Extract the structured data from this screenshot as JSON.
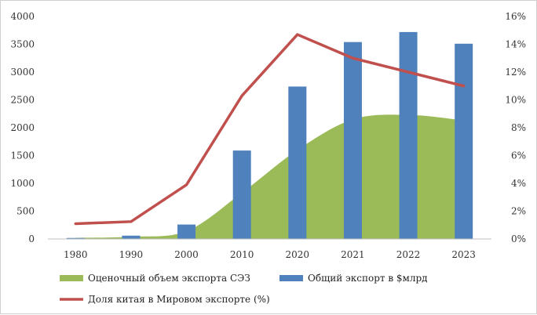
{
  "chart_data": {
    "type": "bar",
    "title": "",
    "xlabel": "",
    "ylabel": "",
    "categories": [
      "1980",
      "1990",
      "2000",
      "2010",
      "2020",
      "2021",
      "2022",
      "2023"
    ],
    "ylim": [
      0,
      4000
    ],
    "yticks": [
      "0",
      "500",
      "1000",
      "1500",
      "2000",
      "2500",
      "3000",
      "3500",
      "4000"
    ],
    "y2lim": [
      0,
      16
    ],
    "y2ticks": [
      "0%",
      "2%",
      "4%",
      "6%",
      "8%",
      "10%",
      "12%",
      "14%",
      "16%"
    ],
    "grid": false,
    "legend_position": "bottom",
    "series": [
      {
        "name": "Оценочный объем экспорта СЭЗ",
        "kind": "area",
        "axis": "left",
        "color": "#9bbb59",
        "values": [
          20,
          40,
          140,
          830,
          1600,
          2150,
          2230,
          2130
        ]
      },
      {
        "name": "Общий экспорт в $млрд",
        "kind": "bar",
        "axis": "left",
        "color": "#4f81bd",
        "values": [
          18,
          60,
          260,
          1590,
          2740,
          3540,
          3720,
          3510
        ]
      },
      {
        "name": "Доля китая в Мировом экспорте (%)",
        "kind": "line",
        "axis": "right",
        "color": "#c0504d",
        "values": [
          1.1,
          1.25,
          3.9,
          10.3,
          14.7,
          13.0,
          12.0,
          11.0
        ]
      }
    ]
  }
}
